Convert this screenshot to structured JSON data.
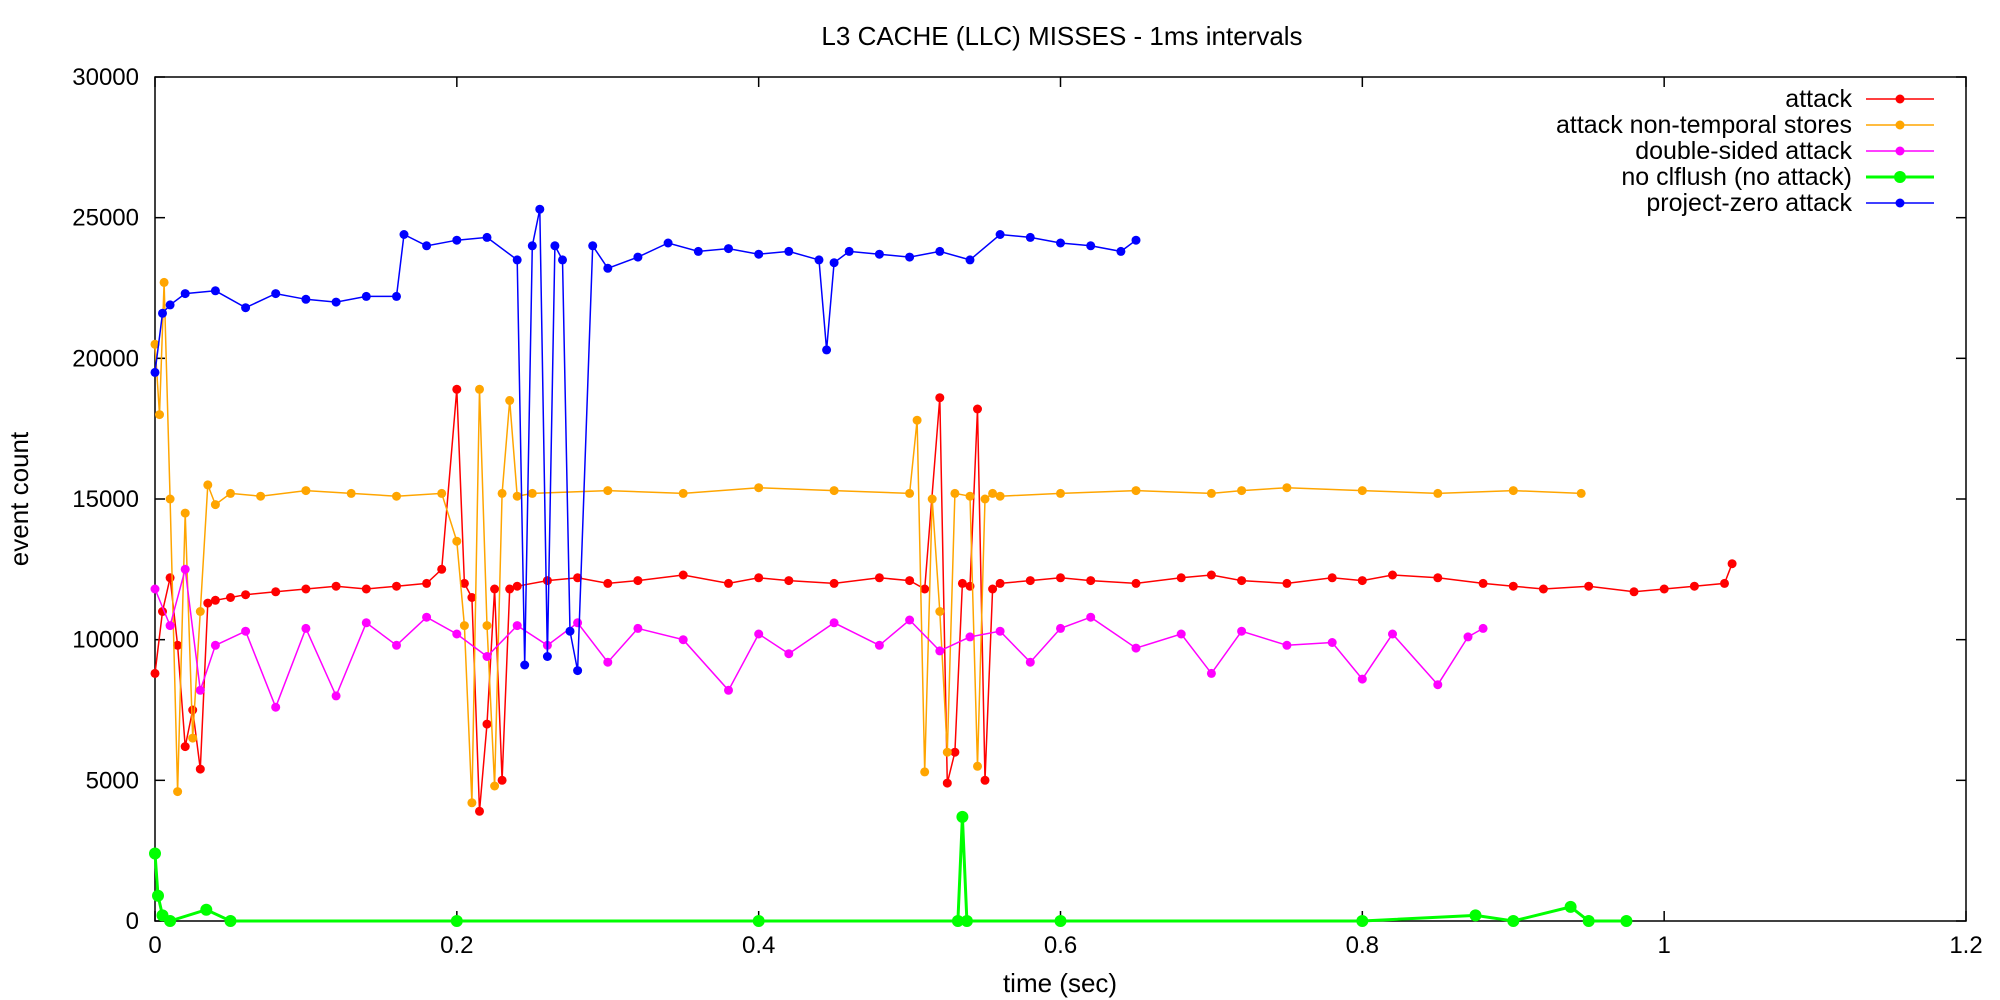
{
  "chart_data": {
    "type": "line",
    "title": "L3 CACHE (LLC) MISSES - 1ms intervals",
    "xlabel": "time (sec)",
    "ylabel": "event count",
    "xlim": [
      0,
      1.2
    ],
    "ylim": [
      0,
      30000
    ],
    "x_ticks": [
      0,
      0.2,
      0.4,
      0.6,
      0.8,
      1,
      1.2
    ],
    "x_tick_labels": [
      "0",
      "0.2",
      "0.4",
      "0.6",
      "0.8",
      "1",
      "1.2"
    ],
    "y_ticks": [
      0,
      5000,
      10000,
      15000,
      20000,
      25000,
      30000
    ],
    "y_tick_labels": [
      "0",
      "5000",
      "10000",
      "15000",
      "20000",
      "25000",
      "30000"
    ],
    "grid": false,
    "legend_position": "top-right",
    "series": [
      {
        "name": "attack",
        "color": "#ff0000",
        "x": [
          0,
          0.005,
          0.01,
          0.015,
          0.02,
          0.025,
          0.03,
          0.035,
          0.04,
          0.05,
          0.06,
          0.08,
          0.1,
          0.12,
          0.14,
          0.16,
          0.18,
          0.19,
          0.2,
          0.205,
          0.21,
          0.215,
          0.22,
          0.225,
          0.23,
          0.235,
          0.24,
          0.26,
          0.28,
          0.3,
          0.32,
          0.35,
          0.38,
          0.4,
          0.42,
          0.45,
          0.48,
          0.5,
          0.51,
          0.52,
          0.525,
          0.53,
          0.535,
          0.54,
          0.545,
          0.55,
          0.555,
          0.56,
          0.58,
          0.6,
          0.62,
          0.65,
          0.68,
          0.7,
          0.72,
          0.75,
          0.78,
          0.8,
          0.82,
          0.85,
          0.88,
          0.9,
          0.92,
          0.95,
          0.98,
          1.0,
          1.02,
          1.04,
          1.045
        ],
        "y": [
          8800,
          11000,
          12200,
          9800,
          6200,
          7500,
          5400,
          11300,
          11400,
          11500,
          11600,
          11700,
          11800,
          11900,
          11800,
          11900,
          12000,
          12500,
          18900,
          12000,
          11500,
          3900,
          7000,
          11800,
          5000,
          11800,
          11900,
          12100,
          12200,
          12000,
          12100,
          12300,
          12000,
          12200,
          12100,
          12000,
          12200,
          12100,
          11800,
          18600,
          4900,
          6000,
          12000,
          11900,
          18200,
          5000,
          11800,
          12000,
          12100,
          12200,
          12100,
          12000,
          12200,
          12300,
          12100,
          12000,
          12200,
          12100,
          12300,
          12200,
          12000,
          11900,
          11800,
          11900,
          11700,
          11800,
          11900,
          12000,
          12700
        ]
      },
      {
        "name": "attack non-temporal stores",
        "color": "#ffa500",
        "x": [
          0,
          0.003,
          0.006,
          0.01,
          0.015,
          0.02,
          0.025,
          0.03,
          0.035,
          0.04,
          0.05,
          0.07,
          0.1,
          0.13,
          0.16,
          0.19,
          0.2,
          0.205,
          0.21,
          0.215,
          0.22,
          0.225,
          0.23,
          0.235,
          0.24,
          0.25,
          0.3,
          0.35,
          0.4,
          0.45,
          0.5,
          0.505,
          0.51,
          0.515,
          0.52,
          0.525,
          0.53,
          0.54,
          0.545,
          0.55,
          0.555,
          0.56,
          0.6,
          0.65,
          0.7,
          0.72,
          0.75,
          0.8,
          0.85,
          0.9,
          0.945
        ],
        "y": [
          20500,
          18000,
          22700,
          15000,
          4600,
          14500,
          6500,
          11000,
          15500,
          14800,
          15200,
          15100,
          15300,
          15200,
          15100,
          15200,
          13500,
          10500,
          4200,
          18900,
          10500,
          4800,
          15200,
          18500,
          15100,
          15200,
          15300,
          15200,
          15400,
          15300,
          15200,
          17800,
          5300,
          15000,
          11000,
          6000,
          15200,
          15100,
          5500,
          15000,
          15200,
          15100,
          15200,
          15300,
          15200,
          15300,
          15400,
          15300,
          15200,
          15300,
          15200
        ]
      },
      {
        "name": "double-sided attack",
        "color": "#ff00ff",
        "x": [
          0,
          0.01,
          0.02,
          0.03,
          0.04,
          0.06,
          0.08,
          0.1,
          0.12,
          0.14,
          0.16,
          0.18,
          0.2,
          0.22,
          0.24,
          0.26,
          0.28,
          0.3,
          0.32,
          0.35,
          0.38,
          0.4,
          0.42,
          0.45,
          0.48,
          0.5,
          0.52,
          0.54,
          0.56,
          0.58,
          0.6,
          0.62,
          0.65,
          0.68,
          0.7,
          0.72,
          0.75,
          0.78,
          0.8,
          0.82,
          0.85,
          0.87,
          0.88
        ],
        "y": [
          11800,
          10500,
          12500,
          8200,
          9800,
          10300,
          7600,
          10400,
          8000,
          10600,
          9800,
          10800,
          10200,
          9400,
          10500,
          9800,
          10600,
          9200,
          10400,
          10000,
          8200,
          10200,
          9500,
          10600,
          9800,
          10700,
          9600,
          10100,
          10300,
          9200,
          10400,
          10800,
          9700,
          10200,
          8800,
          10300,
          9800,
          9900,
          8600,
          10200,
          8400,
          10100,
          10400
        ]
      },
      {
        "name": "no clflush (no attack)",
        "color": "#00ff00",
        "x": [
          0,
          0.002,
          0.005,
          0.01,
          0.034,
          0.05,
          0.2,
          0.4,
          0.532,
          0.535,
          0.538,
          0.6,
          0.8,
          0.875,
          0.9,
          0.938,
          0.95,
          0.975
        ],
        "y": [
          2400,
          900,
          200,
          0,
          400,
          0,
          0,
          0,
          0,
          3700,
          0,
          0,
          0,
          200,
          0,
          500,
          0,
          0
        ]
      },
      {
        "name": "project-zero attack",
        "color": "#0000ff",
        "x": [
          0,
          0.005,
          0.01,
          0.02,
          0.04,
          0.06,
          0.08,
          0.1,
          0.12,
          0.14,
          0.16,
          0.165,
          0.18,
          0.2,
          0.22,
          0.24,
          0.245,
          0.25,
          0.255,
          0.26,
          0.265,
          0.27,
          0.275,
          0.28,
          0.29,
          0.3,
          0.32,
          0.34,
          0.36,
          0.38,
          0.4,
          0.42,
          0.44,
          0.445,
          0.45,
          0.46,
          0.48,
          0.5,
          0.52,
          0.54,
          0.56,
          0.58,
          0.6,
          0.62,
          0.64,
          0.65
        ],
        "y": [
          19500,
          21600,
          21900,
          22300,
          22400,
          21800,
          22300,
          22100,
          22000,
          22200,
          22200,
          24400,
          24000,
          24200,
          24300,
          23500,
          9100,
          24000,
          25300,
          9400,
          24000,
          23500,
          10300,
          8900,
          24000,
          23200,
          23600,
          24100,
          23800,
          23900,
          23700,
          23800,
          23500,
          20300,
          23400,
          23800,
          23700,
          23600,
          23800,
          23500,
          24400,
          24300,
          24100,
          24000,
          23800,
          24200
        ]
      }
    ]
  }
}
